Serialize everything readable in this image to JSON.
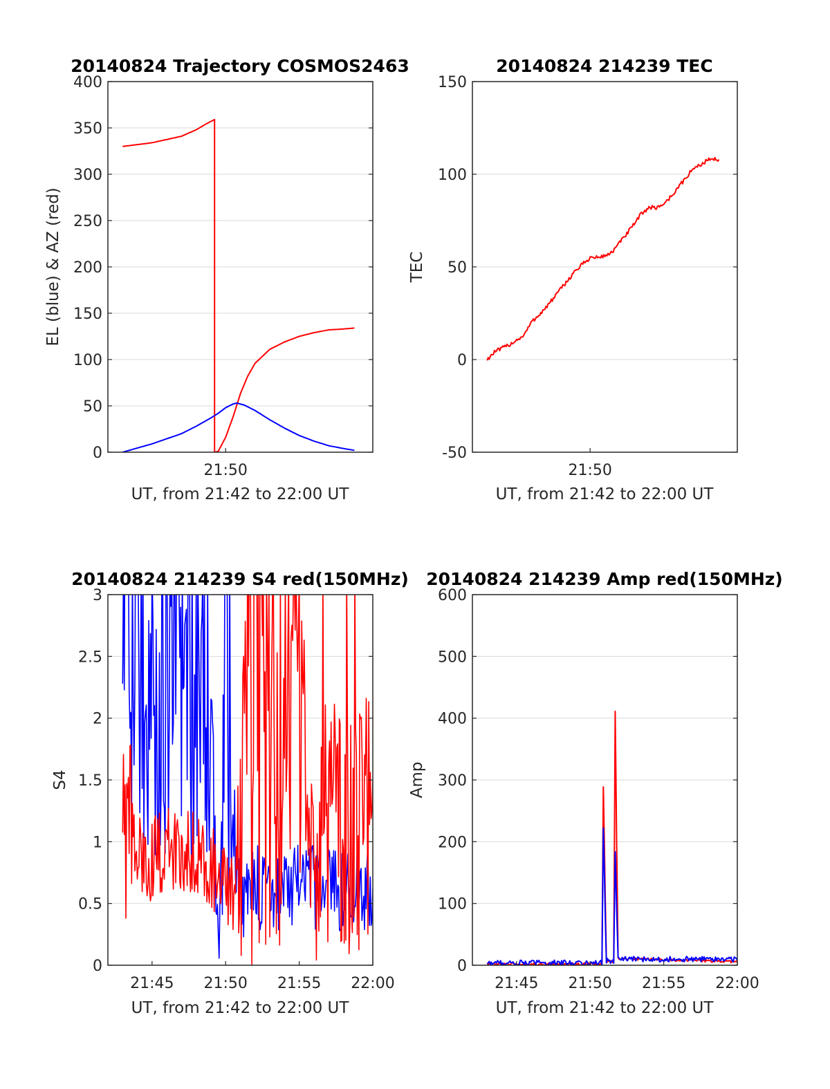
{
  "colors": {
    "el_blue": "#0000ff",
    "az_red": "#ff0000",
    "grid": "#d9d9d9",
    "axes": "#262626"
  },
  "chart_data": [
    {
      "id": "trajectory",
      "type": "line",
      "title": "20140824 Trajectory COSMOS2463",
      "xlabel": "UT, from 21:42 to 22:00 UT",
      "ylabel": "EL (blue) & AZ (red)",
      "xlim": [
        21.7,
        22.0
      ],
      "ylim": [
        0,
        400
      ],
      "yticks": [
        0,
        50,
        100,
        150,
        200,
        250,
        300,
        350,
        400
      ],
      "xticks": [
        {
          "v": 21.8333,
          "label": "21:50"
        }
      ],
      "grid": "horizontal solid, vertical dotted every minute",
      "series": [
        {
          "color": "red",
          "values": [
            [
              21.7167,
              330
            ],
            [
              21.75,
              334
            ],
            [
              21.7833,
              341
            ],
            [
              21.8,
              348
            ],
            [
              21.8125,
              355
            ],
            [
              21.8208,
              359
            ],
            [
              21.8208,
              0
            ],
            [
              21.825,
              1
            ],
            [
              21.8333,
              16
            ],
            [
              21.8417,
              38
            ],
            [
              21.85,
              63
            ],
            [
              21.8583,
              82
            ],
            [
              21.8667,
              96
            ],
            [
              21.8833,
              111
            ],
            [
              21.9,
              119
            ],
            [
              21.9167,
              125
            ],
            [
              21.9333,
              129
            ],
            [
              21.95,
              132
            ],
            [
              21.9667,
              133
            ],
            [
              21.9792,
              134
            ]
          ]
        },
        {
          "color": "blue",
          "values": [
            [
              21.7167,
              0
            ],
            [
              21.75,
              9
            ],
            [
              21.7833,
              20
            ],
            [
              21.8,
              28
            ],
            [
              21.8167,
              37
            ],
            [
              21.825,
              42
            ],
            [
              21.8333,
              48
            ],
            [
              21.8417,
              52
            ],
            [
              21.8458,
              53
            ],
            [
              21.8542,
              51
            ],
            [
              21.8667,
              45
            ],
            [
              21.8833,
              35
            ],
            [
              21.9,
              26
            ],
            [
              21.9167,
              18
            ],
            [
              21.9333,
              12
            ],
            [
              21.95,
              7
            ],
            [
              21.9667,
              4
            ],
            [
              21.9792,
              2
            ]
          ]
        }
      ]
    },
    {
      "id": "tec",
      "type": "line",
      "title": "20140824 214239 TEC",
      "xlabel": "UT, from 21:42 to 22:00 UT",
      "ylabel": "TEC",
      "xlim": [
        21.7,
        22.0
      ],
      "ylim": [
        -50,
        150
      ],
      "yticks": [
        -50,
        0,
        50,
        100,
        150
      ],
      "xticks": [
        {
          "v": 21.8333,
          "label": "21:50"
        }
      ],
      "grid": "horizontal solid, vertical dotted every minute",
      "series": [
        {
          "color": "red",
          "values": [
            [
              21.7167,
              0
            ],
            [
              21.725,
              4
            ],
            [
              21.7417,
              8
            ],
            [
              21.7583,
              13
            ],
            [
              21.7667,
              20
            ],
            [
              21.7833,
              28
            ],
            [
              21.8,
              38
            ],
            [
              21.8167,
              48
            ],
            [
              21.8333,
              55
            ],
            [
              21.8417,
              55
            ],
            [
              21.85,
              56
            ],
            [
              21.8583,
              58
            ],
            [
              21.8667,
              63
            ],
            [
              21.875,
              68
            ],
            [
              21.8833,
              73
            ],
            [
              21.8917,
              79
            ],
            [
              21.9,
              82
            ],
            [
              21.9083,
              82
            ],
            [
              21.9167,
              84
            ],
            [
              21.925,
              88
            ],
            [
              21.9333,
              93
            ],
            [
              21.9417,
              98
            ],
            [
              21.95,
              103
            ],
            [
              21.9583,
              105
            ],
            [
              21.9667,
              108
            ],
            [
              21.9792,
              108
            ]
          ]
        }
      ]
    },
    {
      "id": "s4",
      "type": "line",
      "title": "20140824 214239 S4 red(150MHz)",
      "xlabel": "UT, from 21:42 to 22:00 UT",
      "ylabel": "S4",
      "xlim": [
        21.7,
        22.0
      ],
      "ylim": [
        0,
        3
      ],
      "yticks": [
        0,
        0.5,
        1,
        1.5,
        2,
        2.5,
        3
      ],
      "xticks": [
        {
          "v": 21.75,
          "label": "21:45"
        },
        {
          "v": 21.8333,
          "label": "21:50"
        },
        {
          "v": 21.9167,
          "label": "21:55"
        },
        {
          "v": 22.0,
          "label": "22:00"
        }
      ],
      "grid": "horizontal solid, vertical dotted every minute",
      "series": [
        {
          "color": "blue",
          "values": [
            [
              21.7167,
              2.8
            ],
            [
              21.725,
              2.2
            ],
            [
              21.7333,
              2.5
            ],
            [
              21.75,
              2.1
            ],
            [
              21.7667,
              2.3
            ],
            [
              21.7833,
              2.0
            ],
            [
              21.8,
              2.2
            ],
            [
              21.8167,
              2.3
            ],
            [
              21.825,
              0
            ],
            [
              21.8333,
              2.0
            ],
            [
              21.85,
              0.5
            ],
            [
              21.8667,
              0.62
            ],
            [
              21.9,
              0.62
            ],
            [
              21.95,
              0.63
            ],
            [
              22.0,
              0.62
            ]
          ]
        },
        {
          "color": "red",
          "values": [
            [
              21.7167,
              1.4
            ],
            [
              21.725,
              1.1
            ],
            [
              21.7333,
              0.85
            ],
            [
              21.75,
              0.85
            ],
            [
              21.7667,
              0.95
            ],
            [
              21.7833,
              0.9
            ],
            [
              21.8,
              0.95
            ],
            [
              21.8167,
              0.8
            ],
            [
              21.8333,
              0.6
            ],
            [
              21.8417,
              0.5
            ],
            [
              21.85,
              1.3
            ],
            [
              21.8583,
              2.5
            ],
            [
              21.8667,
              2.8
            ],
            [
              21.875,
              2.5
            ],
            [
              21.8917,
              2.2
            ],
            [
              21.9,
              1.5
            ],
            [
              21.9167,
              2.0
            ],
            [
              21.9333,
              0.9
            ],
            [
              21.95,
              1.5
            ],
            [
              21.9667,
              1.0
            ],
            [
              21.9833,
              1.2
            ],
            [
              22.0,
              1.5
            ]
          ]
        }
      ]
    },
    {
      "id": "amp",
      "type": "line",
      "title": "20140824 214239 Amp red(150MHz)",
      "xlabel": "UT, from 21:42 to 22:00 UT",
      "ylabel": "Amp",
      "xlim": [
        21.7,
        22.0
      ],
      "ylim": [
        0,
        600
      ],
      "yticks": [
        0,
        100,
        200,
        300,
        400,
        500,
        600
      ],
      "xticks": [
        {
          "v": 21.75,
          "label": "21:45"
        },
        {
          "v": 21.8333,
          "label": "21:50"
        },
        {
          "v": 21.9167,
          "label": "21:55"
        },
        {
          "v": 22.0,
          "label": "22:00"
        }
      ],
      "grid": "horizontal solid, vertical dotted every minute",
      "series": [
        {
          "color": "red",
          "values": [
            [
              21.7167,
              1
            ],
            [
              21.8467,
              1
            ],
            [
              21.8483,
              290
            ],
            [
              21.8517,
              5
            ],
            [
              21.86,
              5
            ],
            [
              21.8617,
              410
            ],
            [
              21.8633,
              200
            ],
            [
              21.865,
              10
            ],
            [
              22.0,
              5
            ]
          ]
        },
        {
          "color": "blue",
          "values": [
            [
              21.7167,
              2
            ],
            [
              21.8467,
              2
            ],
            [
              21.8483,
              220
            ],
            [
              21.8517,
              5
            ],
            [
              21.86,
              5
            ],
            [
              21.8617,
              180
            ],
            [
              21.865,
              8
            ],
            [
              22.0,
              8
            ]
          ]
        }
      ]
    }
  ]
}
